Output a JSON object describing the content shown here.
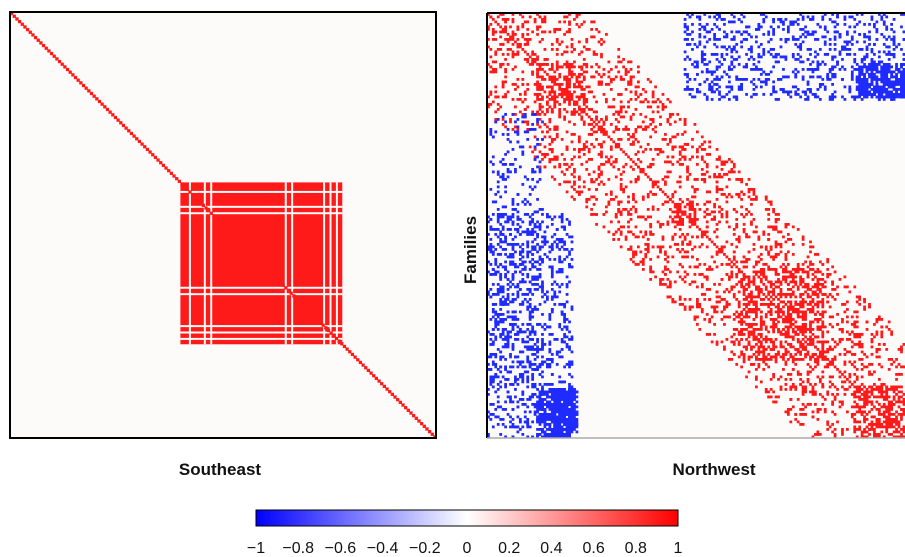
{
  "chart_data": [
    {
      "type": "heatmap",
      "title": "Southeast",
      "ylabel": "",
      "value_range": [
        -1,
        1
      ],
      "diagonal": 1,
      "dense_block_value": 1,
      "dense_block_region_fraction": [
        0.4,
        0.78
      ],
      "notes_visible": "near-zero background; strong positive block in center"
    },
    {
      "type": "heatmap",
      "title": "Northwest",
      "ylabel": "Families",
      "value_range": [
        -1,
        1
      ],
      "diagonal": 1,
      "positive_clusters_fraction": [
        [
          0.12,
          0.24
        ],
        [
          0.45,
          0.5
        ],
        [
          0.6,
          0.82
        ],
        [
          0.88,
          1.0
        ]
      ],
      "negative_regions": [
        "top-right",
        "bottom-left"
      ]
    }
  ],
  "colorbar": {
    "ticks": [
      "−1",
      "−0.8",
      "−0.6",
      "−0.4",
      "−0.2",
      "0",
      "0.2",
      "0.4",
      "0.6",
      "0.8",
      "1"
    ],
    "min_color": "#0000ff",
    "mid_color": "#ffffff",
    "max_color": "#ff0000"
  },
  "colors": {
    "positive": "#ff1a1a",
    "negative": "#1f2bff",
    "background": "#fdfafa"
  }
}
